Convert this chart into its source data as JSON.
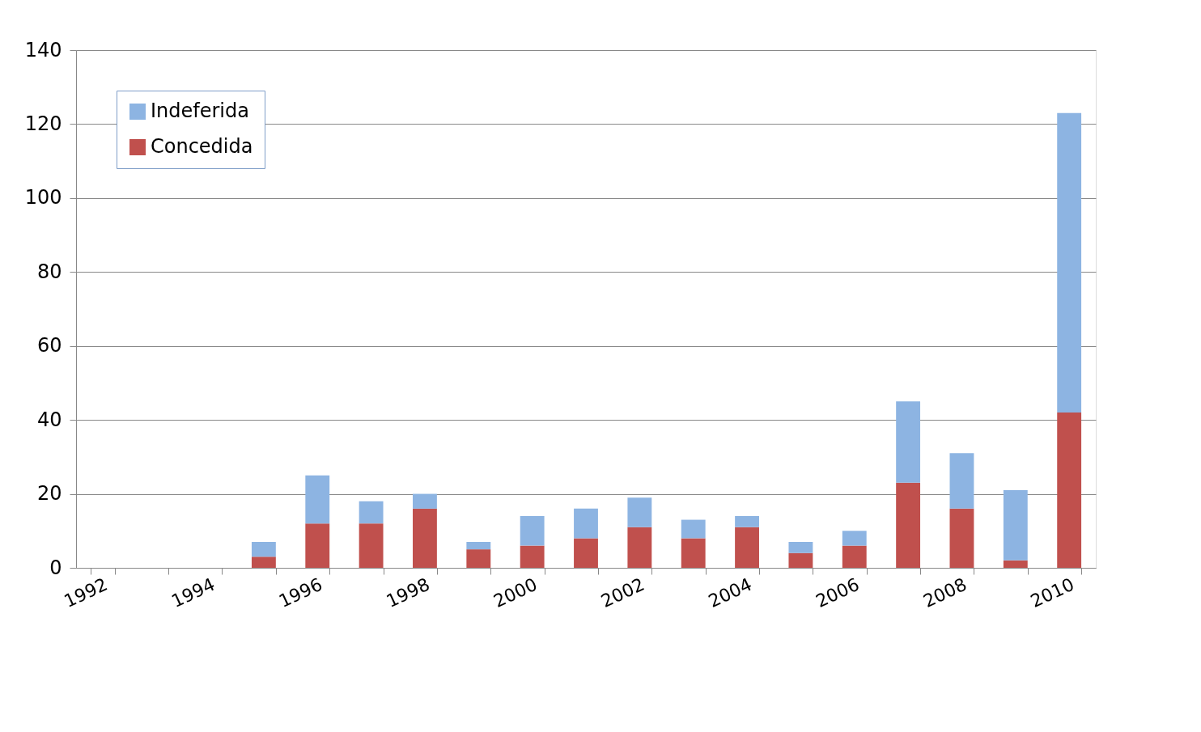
{
  "chart_data": {
    "type": "bar",
    "stacked": true,
    "categories": [
      "1992",
      null,
      "1994",
      null,
      "1996",
      null,
      "1998",
      null,
      "2000",
      null,
      "2002",
      null,
      "2004",
      null,
      "2006",
      null,
      "2008",
      null,
      "2010"
    ],
    "series": [
      {
        "name": "Concedida",
        "color": "#c0504d",
        "values": [
          0,
          0,
          0,
          3,
          12,
          12,
          16,
          5,
          6,
          8,
          11,
          8,
          11,
          4,
          6,
          23,
          16,
          2,
          42
        ]
      },
      {
        "name": "Indeferida",
        "color": "#8db4e2",
        "values": [
          0,
          0,
          0,
          4,
          13,
          6,
          4,
          2,
          8,
          8,
          8,
          5,
          3,
          3,
          4,
          22,
          15,
          19,
          81
        ]
      }
    ],
    "ylim": [
      0,
      140
    ],
    "yticks": [
      0,
      20,
      40,
      60,
      80,
      100,
      120,
      140
    ],
    "grid": "y",
    "legend": "top left"
  }
}
